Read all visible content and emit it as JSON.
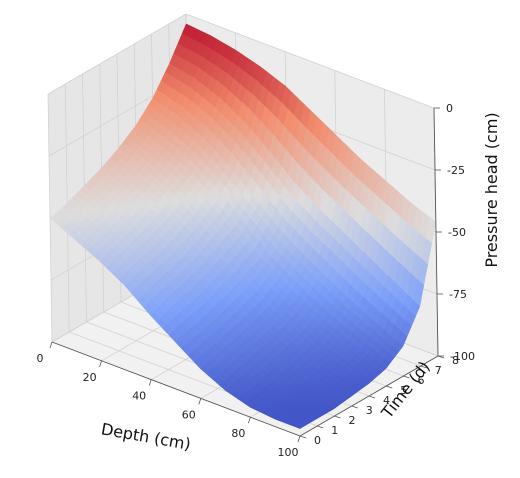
{
  "chart_data": {
    "type": "surface3d",
    "xlabel": "Depth (cm)",
    "ylabel": "Time (d)",
    "zlabel": "Pressure head (cm)",
    "x_ticks": [
      "0",
      "20",
      "40",
      "60",
      "80",
      "100"
    ],
    "y_ticks": [
      "0",
      "1",
      "2",
      "3",
      "4",
      "5",
      "6",
      "7",
      "8"
    ],
    "z_ticks": [
      "0",
      "-25",
      "-50",
      "-75",
      "-100"
    ],
    "xlim": [
      0,
      100
    ],
    "ylim": [
      0,
      8
    ],
    "zlim": [
      -100,
      0
    ],
    "grid": true,
    "colormap": "coolwarm",
    "depth": [
      0,
      10,
      20,
      30,
      40,
      50,
      60,
      70,
      80,
      90,
      100
    ],
    "time": [
      0,
      1,
      2,
      3,
      4,
      5,
      6,
      7,
      8
    ],
    "pressure_head": [
      [
        -50,
        -55,
        -60,
        -66,
        -74,
        -81,
        -88,
        -93,
        -96,
        -97,
        -97
      ],
      [
        -48,
        -52,
        -57,
        -63,
        -71,
        -79,
        -86,
        -91,
        -95,
        -97,
        -97
      ],
      [
        -45,
        -49,
        -54,
        -61,
        -69,
        -77,
        -84,
        -89,
        -93,
        -96,
        -97
      ],
      [
        -42,
        -46,
        -51,
        -58,
        -66,
        -74,
        -82,
        -87,
        -91,
        -94,
        -96
      ],
      [
        -38,
        -42,
        -47,
        -54,
        -62,
        -71,
        -79,
        -84,
        -89,
        -92,
        -95
      ],
      [
        -33,
        -37,
        -42,
        -49,
        -58,
        -67,
        -74,
        -80,
        -85,
        -89,
        -93
      ],
      [
        -26,
        -29,
        -34,
        -41,
        -50,
        -59,
        -66,
        -72,
        -78,
        -83,
        -88
      ],
      [
        -16,
        -18,
        -22,
        -28,
        -36,
        -45,
        -52,
        -58,
        -64,
        -70,
        -76
      ],
      [
        -4,
        -5,
        -7,
        -10,
        -14,
        -20,
        -26,
        -32,
        -37,
        -42,
        -46
      ]
    ]
  }
}
